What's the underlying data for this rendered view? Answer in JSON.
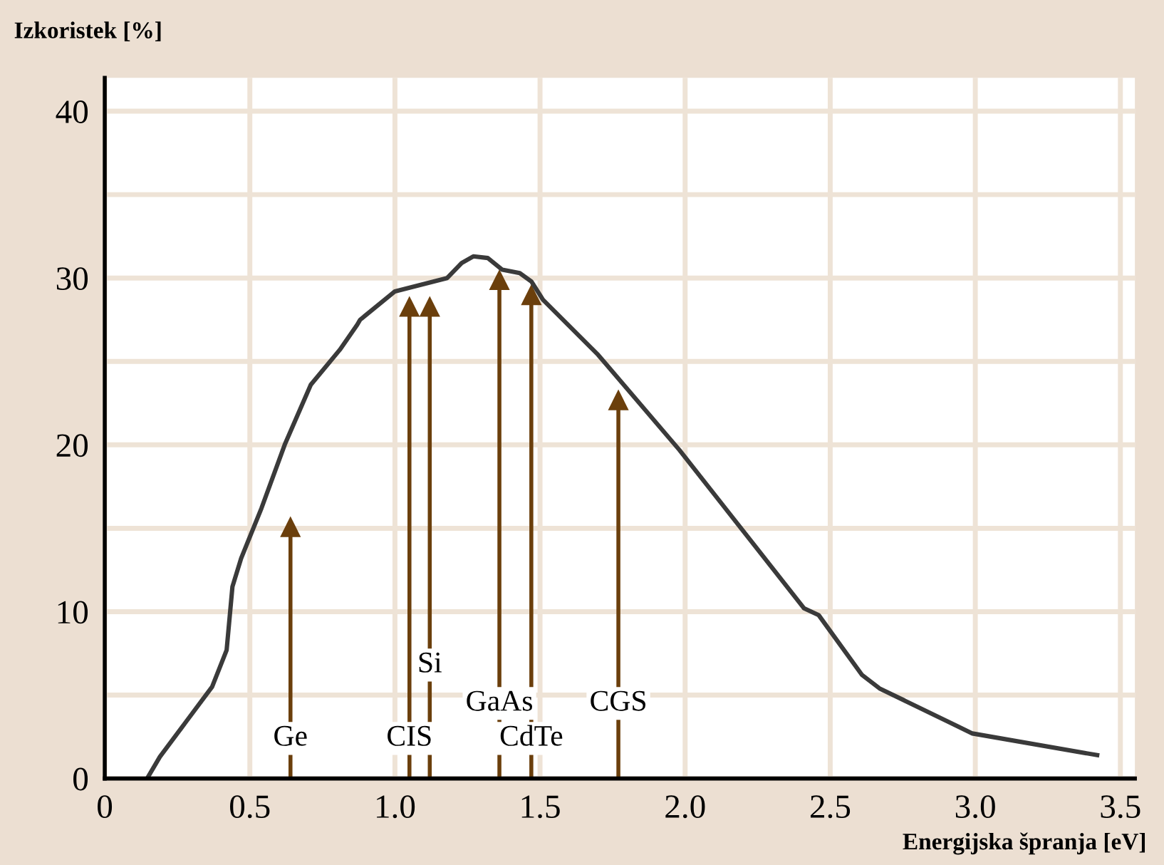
{
  "chart_data": {
    "type": "line",
    "ylabel": "Izkoristek [%]",
    "xlabel": "Energijska špranja [eV]",
    "series": [
      {
        "color": "#3a3a3a",
        "x": [
          0.146,
          0.19,
          0.28,
          0.37,
          0.42,
          0.44,
          0.47,
          0.54,
          0.62,
          0.71,
          0.81,
          0.87,
          0.88,
          1.0,
          1.18,
          1.23,
          1.27,
          1.32,
          1.37,
          1.43,
          1.47,
          1.51,
          1.7,
          1.98,
          2.41,
          2.46,
          2.61,
          2.67,
          2.99,
          3.42
        ],
        "values": [
          0,
          1.3,
          3.4,
          5.5,
          7.7,
          11.5,
          13.2,
          16.2,
          20,
          23.6,
          25.7,
          27.2,
          27.5,
          29.2,
          30.0,
          30.9,
          31.3,
          31.2,
          30.5,
          30.3,
          29.8,
          28.7,
          25.4,
          19.7,
          10.2,
          9.8,
          6.2,
          5.4,
          2.7,
          1.4
        ]
      },
      {
        "type": "lollipop",
        "color": "#6b3f0c",
        "marker": "triangle",
        "x": [
          0.64,
          1.05,
          1.12,
          1.36,
          1.47,
          1.77
        ],
        "values": [
          15.1,
          28.3,
          28.3,
          29.9,
          29.0,
          22.7
        ]
      }
    ],
    "annotations": [
      "Ge",
      "CIS",
      "Si",
      "GaAs",
      "CdTe",
      "CGS"
    ],
    "xlim": [
      0,
      3.55
    ],
    "ylim": [
      0,
      42
    ],
    "xticks": [
      {
        "value": 0,
        "label": "0"
      },
      0.5,
      {
        "value": 1,
        "label": "1.0"
      },
      1.5,
      {
        "value": 2,
        "label": "2.0"
      },
      2.5,
      {
        "value": 3,
        "label": "3.0"
      },
      3.5
    ],
    "yticks": [
      0,
      {
        "value": 5,
        "label": null
      },
      10,
      {
        "value": 15,
        "label": null
      },
      20,
      {
        "value": 25,
        "label": null
      },
      30,
      {
        "value": 35,
        "label": null
      },
      40
    ],
    "grid": true,
    "marker": "none",
    "line_style": "solid"
  }
}
